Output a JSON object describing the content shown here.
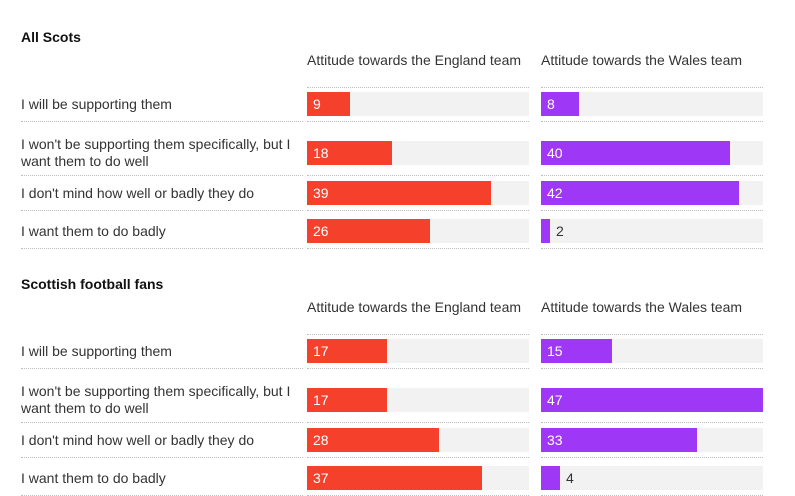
{
  "colors": {
    "england": "#f5402c",
    "wales": "#9f37f6",
    "track": "#f2f2f2"
  },
  "chart_data": [
    {
      "type": "bar",
      "title": "All Scots",
      "categories": [
        "I will be supporting them",
        "I won't be supporting them specifically, but I want them to do well",
        "I don't mind how well or badly they do",
        "I want them to do badly"
      ],
      "series": [
        {
          "name": "Attitude towards the England team",
          "values": [
            9,
            18,
            39,
            26
          ]
        },
        {
          "name": "Attitude towards the Wales team",
          "values": [
            8,
            40,
            42,
            2
          ]
        }
      ]
    },
    {
      "type": "bar",
      "title": "Scottish football fans",
      "categories": [
        "I will be supporting them",
        "I won't be supporting them specifically, but I want them to do well",
        "I don't mind how well or badly they do",
        "I want them to do badly"
      ],
      "series": [
        {
          "name": "Attitude towards the England team",
          "values": [
            17,
            17,
            28,
            37
          ]
        },
        {
          "name": "Attitude towards the Wales team",
          "values": [
            15,
            47,
            33,
            4
          ]
        }
      ]
    }
  ]
}
